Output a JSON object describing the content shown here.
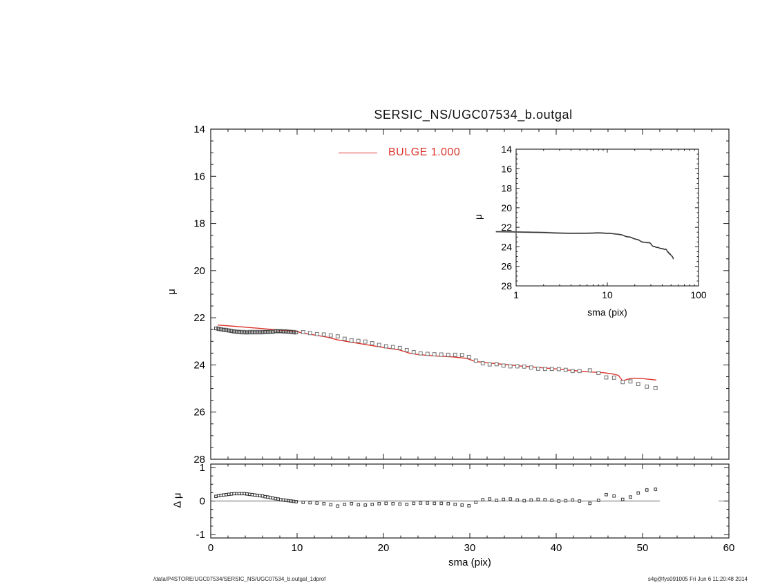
{
  "title": "SERSIC_NS/UGC07534_b.outgal",
  "legend": {
    "label": "BULGE  1.000",
    "color": "#db332a"
  },
  "footer": {
    "left": "/data/P4STORE/UGC07534/SERSIC_NS/UGC07534_b.outgal_1dprof",
    "right": "s4g@fys091005  Fri Jun  6 11:20:48 2014"
  },
  "colors": {
    "model_red": "#db332a",
    "frame": "#1a1a1a",
    "band_gray": "#b4b4b4",
    "dense_marker": "#3f3f3f",
    "open_marker_stroke": "#6e6e6e",
    "residual_marker": "#4a4a4a",
    "zero_line": "#9c9c9c",
    "error_bar": "#8a8a8a"
  },
  "chart_data": [
    {
      "type": "scatter",
      "panel": "main",
      "title": "SERSIC_NS/UGC07534_b.outgal",
      "xlabel": "",
      "ylabel": "μ",
      "xlim": [
        0,
        60
      ],
      "ylim": [
        28,
        14
      ],
      "x_major_ticks": [
        0,
        10,
        20,
        30,
        40,
        50,
        60
      ],
      "x_minor_step": 2,
      "y_major_ticks": [
        14,
        16,
        18,
        20,
        22,
        24,
        26,
        28
      ],
      "y_tick_labels": [
        "14",
        "16",
        "18",
        "20",
        "22",
        "24",
        "26",
        "28"
      ],
      "y_minor_step": 0.5,
      "grid": false,
      "legend_position": "top-center-inside",
      "series": [
        {
          "name": "profile data (dense inner region, with error band)",
          "marker": "square",
          "band_half_width": 0.1,
          "points": [
            [
              0.6,
              22.45
            ],
            [
              0.9,
              22.47
            ],
            [
              1.2,
              22.49
            ],
            [
              1.5,
              22.51
            ],
            [
              1.8,
              22.52
            ],
            [
              2.1,
              22.54
            ],
            [
              2.4,
              22.56
            ],
            [
              2.7,
              22.58
            ],
            [
              3.0,
              22.59
            ],
            [
              3.3,
              22.6
            ],
            [
              3.6,
              22.61
            ],
            [
              3.9,
              22.61
            ],
            [
              4.2,
              22.62
            ],
            [
              4.5,
              22.61
            ],
            [
              4.8,
              22.61
            ],
            [
              5.1,
              22.61
            ],
            [
              5.4,
              22.61
            ],
            [
              5.7,
              22.61
            ],
            [
              6.0,
              22.61
            ],
            [
              6.3,
              22.6
            ],
            [
              6.6,
              22.6
            ],
            [
              6.9,
              22.59
            ],
            [
              7.2,
              22.59
            ],
            [
              7.5,
              22.57
            ],
            [
              7.8,
              22.57
            ],
            [
              8.1,
              22.57
            ],
            [
              8.4,
              22.58
            ],
            [
              8.7,
              22.58
            ],
            [
              9.0,
              22.59
            ],
            [
              9.3,
              22.6
            ],
            [
              9.6,
              22.61
            ],
            [
              9.9,
              22.62
            ]
          ]
        },
        {
          "name": "profile data (outer region)",
          "marker": "open-square",
          "points": [
            [
              10.7,
              22.61,
              0
            ],
            [
              11.5,
              22.65,
              0
            ],
            [
              12.3,
              22.69,
              0
            ],
            [
              13.1,
              22.71,
              0
            ],
            [
              13.9,
              22.75,
              0
            ],
            [
              14.7,
              22.79,
              0
            ],
            [
              15.5,
              22.89,
              0
            ],
            [
              16.3,
              22.96,
              0
            ],
            [
              17.1,
              22.98,
              0
            ],
            [
              17.9,
              23.01,
              0
            ],
            [
              18.7,
              23.08,
              0
            ],
            [
              19.5,
              23.15,
              0
            ],
            [
              20.3,
              23.21,
              0
            ],
            [
              21.1,
              23.24,
              0
            ],
            [
              21.9,
              23.28,
              0
            ],
            [
              22.7,
              23.37,
              0
            ],
            [
              23.5,
              23.46,
              0
            ],
            [
              24.3,
              23.51,
              0
            ],
            [
              25.1,
              23.53,
              0
            ],
            [
              25.9,
              23.55,
              0
            ],
            [
              26.7,
              23.56,
              0
            ],
            [
              27.5,
              23.57,
              0
            ],
            [
              28.3,
              23.57,
              0
            ],
            [
              29.1,
              23.58,
              0
            ],
            [
              29.9,
              23.66,
              0
            ],
            [
              30.7,
              23.82,
              0
            ],
            [
              31.5,
              23.93,
              0
            ],
            [
              32.3,
              23.98,
              0
            ],
            [
              33.1,
              23.97,
              0
            ],
            [
              33.9,
              24.03,
              0
            ],
            [
              34.7,
              24.06,
              0
            ],
            [
              35.5,
              24.06,
              0
            ],
            [
              36.3,
              24.07,
              0
            ],
            [
              37.1,
              24.11,
              0
            ],
            [
              37.9,
              24.16,
              0
            ],
            [
              38.7,
              24.17,
              0
            ],
            [
              39.5,
              24.17,
              0
            ],
            [
              40.3,
              24.18,
              0
            ],
            [
              41.1,
              24.21,
              0
            ],
            [
              41.9,
              24.26,
              0
            ],
            [
              42.7,
              24.26,
              0
            ],
            [
              43.9,
              24.23,
              0
            ],
            [
              44.9,
              24.34,
              0
            ],
            [
              45.8,
              24.53,
              0.03
            ],
            [
              46.7,
              24.54,
              0.03
            ],
            [
              47.7,
              24.73,
              0.03
            ],
            [
              48.6,
              24.7,
              0.04
            ],
            [
              49.5,
              24.81,
              0.05
            ],
            [
              50.5,
              24.92,
              0.06
            ],
            [
              51.5,
              24.98,
              0.06
            ]
          ]
        },
        {
          "name": "BULGE 1.000 model",
          "kind": "line",
          "color": "#db332a",
          "points": [
            [
              0.8,
              22.31
            ],
            [
              2,
              22.34
            ],
            [
              4,
              22.4
            ],
            [
              6,
              22.46
            ],
            [
              8,
              22.52
            ],
            [
              10,
              22.58
            ],
            [
              10.5,
              22.64
            ],
            [
              12,
              22.73
            ],
            [
              13.5,
              22.82
            ],
            [
              14.7,
              22.94
            ],
            [
              16,
              23.02
            ],
            [
              18,
              23.14
            ],
            [
              20,
              23.26
            ],
            [
              21.8,
              23.36
            ],
            [
              23.0,
              23.5
            ],
            [
              24,
              23.56
            ],
            [
              26,
              23.62
            ],
            [
              28,
              23.66
            ],
            [
              29.6,
              23.72
            ],
            [
              30.6,
              23.85
            ],
            [
              32,
              23.91
            ],
            [
              34,
              23.98
            ],
            [
              36,
              24.05
            ],
            [
              38,
              24.11
            ],
            [
              40,
              24.17
            ],
            [
              42,
              24.24
            ],
            [
              44,
              24.3
            ],
            [
              45.5,
              24.33
            ],
            [
              46.5,
              24.38
            ],
            [
              47.2,
              24.44
            ],
            [
              47.7,
              24.68
            ],
            [
              48.3,
              24.6
            ],
            [
              49,
              24.56
            ],
            [
              50,
              24.58
            ],
            [
              51.6,
              24.64
            ]
          ]
        }
      ]
    },
    {
      "type": "line",
      "panel": "inset",
      "xlabel": "sma (pix)",
      "ylabel": "μ",
      "xscale": "log",
      "xlim": [
        1,
        100
      ],
      "ylim": [
        28,
        14
      ],
      "x_major_ticks": [
        1,
        10,
        100
      ],
      "x_tick_labels": [
        "1",
        "10",
        "100"
      ],
      "y_major_ticks": [
        14,
        16,
        18,
        20,
        22,
        24,
        26,
        28
      ],
      "y_tick_labels": [
        "14",
        "16",
        "18",
        "20",
        "22",
        "24",
        "26",
        "28"
      ],
      "y_minor_step": 0.5,
      "note": "same surface-brightness profile as main panel, log sma axis, gray error band around dark line",
      "tail_points": [
        [
          52.3,
          25.08,
          0.14
        ],
        [
          53.0,
          25.25,
          0.18
        ]
      ]
    },
    {
      "type": "scatter",
      "panel": "residual",
      "xlabel": "sma (pix)",
      "ylabel": "Δ μ",
      "xlim": [
        0,
        60
      ],
      "ylim": [
        -1.1,
        1.1
      ],
      "x_major_ticks": [
        0,
        10,
        20,
        30,
        40,
        50,
        60
      ],
      "x_tick_labels": [
        "0",
        "10",
        "20",
        "30",
        "40",
        "50",
        "60"
      ],
      "x_minor_step": 2,
      "y_major_ticks": [
        -1,
        0,
        1
      ],
      "y_tick_labels": [
        "-1",
        "0",
        "1"
      ],
      "y_minor_step": 0.25,
      "zero_line_segments": [
        [
          0.6,
          52.0
        ],
        [
          58.8,
          60.0
        ]
      ],
      "dense_points": [
        [
          0.6,
          0.14
        ],
        [
          0.9,
          0.16
        ],
        [
          1.2,
          0.17
        ],
        [
          1.5,
          0.18
        ],
        [
          1.8,
          0.19
        ],
        [
          2.1,
          0.2
        ],
        [
          2.4,
          0.21
        ],
        [
          2.7,
          0.22
        ],
        [
          3.0,
          0.22
        ],
        [
          3.3,
          0.22
        ],
        [
          3.6,
          0.22
        ],
        [
          3.9,
          0.22
        ],
        [
          4.2,
          0.21
        ],
        [
          4.5,
          0.2
        ],
        [
          4.8,
          0.19
        ],
        [
          5.1,
          0.18
        ],
        [
          5.4,
          0.17
        ],
        [
          5.7,
          0.16
        ],
        [
          6.0,
          0.15
        ],
        [
          6.3,
          0.13
        ],
        [
          6.6,
          0.12
        ],
        [
          6.9,
          0.1
        ],
        [
          7.2,
          0.09
        ],
        [
          7.5,
          0.07
        ],
        [
          7.8,
          0.06
        ],
        [
          8.1,
          0.04
        ],
        [
          8.4,
          0.03
        ],
        [
          8.7,
          0.02
        ],
        [
          9.0,
          0.01
        ],
        [
          9.3,
          0.0
        ],
        [
          9.6,
          -0.01
        ],
        [
          9.9,
          -0.02
        ]
      ],
      "points": [
        [
          10.7,
          -0.04,
          0
        ],
        [
          11.5,
          -0.05,
          0
        ],
        [
          12.3,
          -0.06,
          0
        ],
        [
          13.1,
          -0.08,
          0
        ],
        [
          13.9,
          -0.11,
          0
        ],
        [
          14.7,
          -0.15,
          0
        ],
        [
          15.5,
          -0.1,
          0
        ],
        [
          16.3,
          -0.08,
          0
        ],
        [
          17.1,
          -0.11,
          0
        ],
        [
          17.9,
          -0.12,
          0
        ],
        [
          18.7,
          -0.1,
          0
        ],
        [
          19.5,
          -0.08,
          0
        ],
        [
          20.3,
          -0.07,
          0
        ],
        [
          21.1,
          -0.08,
          0
        ],
        [
          21.9,
          -0.09,
          0
        ],
        [
          22.7,
          -0.1,
          0
        ],
        [
          23.5,
          -0.07,
          0
        ],
        [
          24.3,
          -0.06,
          0
        ],
        [
          25.1,
          -0.06,
          0
        ],
        [
          25.9,
          -0.07,
          0
        ],
        [
          26.7,
          -0.07,
          0
        ],
        [
          27.5,
          -0.08,
          0
        ],
        [
          28.3,
          -0.1,
          0
        ],
        [
          29.1,
          -0.12,
          0
        ],
        [
          29.9,
          -0.14,
          0
        ],
        [
          30.7,
          -0.04,
          0
        ],
        [
          31.5,
          0.04,
          0
        ],
        [
          32.3,
          0.06,
          0
        ],
        [
          33.1,
          0.02,
          0
        ],
        [
          33.9,
          0.05,
          0
        ],
        [
          34.7,
          0.06,
          0.02
        ],
        [
          35.5,
          0.03,
          0
        ],
        [
          36.3,
          0.01,
          0
        ],
        [
          37.1,
          0.03,
          0
        ],
        [
          37.9,
          0.05,
          0
        ],
        [
          38.7,
          0.04,
          0
        ],
        [
          39.5,
          0.02,
          0
        ],
        [
          40.3,
          0.0,
          0
        ],
        [
          41.1,
          0.01,
          0
        ],
        [
          41.9,
          0.03,
          0
        ],
        [
          42.7,
          0.0,
          0
        ],
        [
          43.9,
          -0.07,
          0
        ],
        [
          44.9,
          0.02,
          0
        ],
        [
          45.8,
          0.19,
          0.03
        ],
        [
          46.7,
          0.15,
          0.03
        ],
        [
          47.7,
          0.05,
          0.03
        ],
        [
          48.6,
          0.12,
          0.04
        ],
        [
          49.5,
          0.24,
          0.05
        ],
        [
          50.5,
          0.33,
          0.06
        ],
        [
          51.5,
          0.35,
          0.06
        ]
      ]
    }
  ]
}
